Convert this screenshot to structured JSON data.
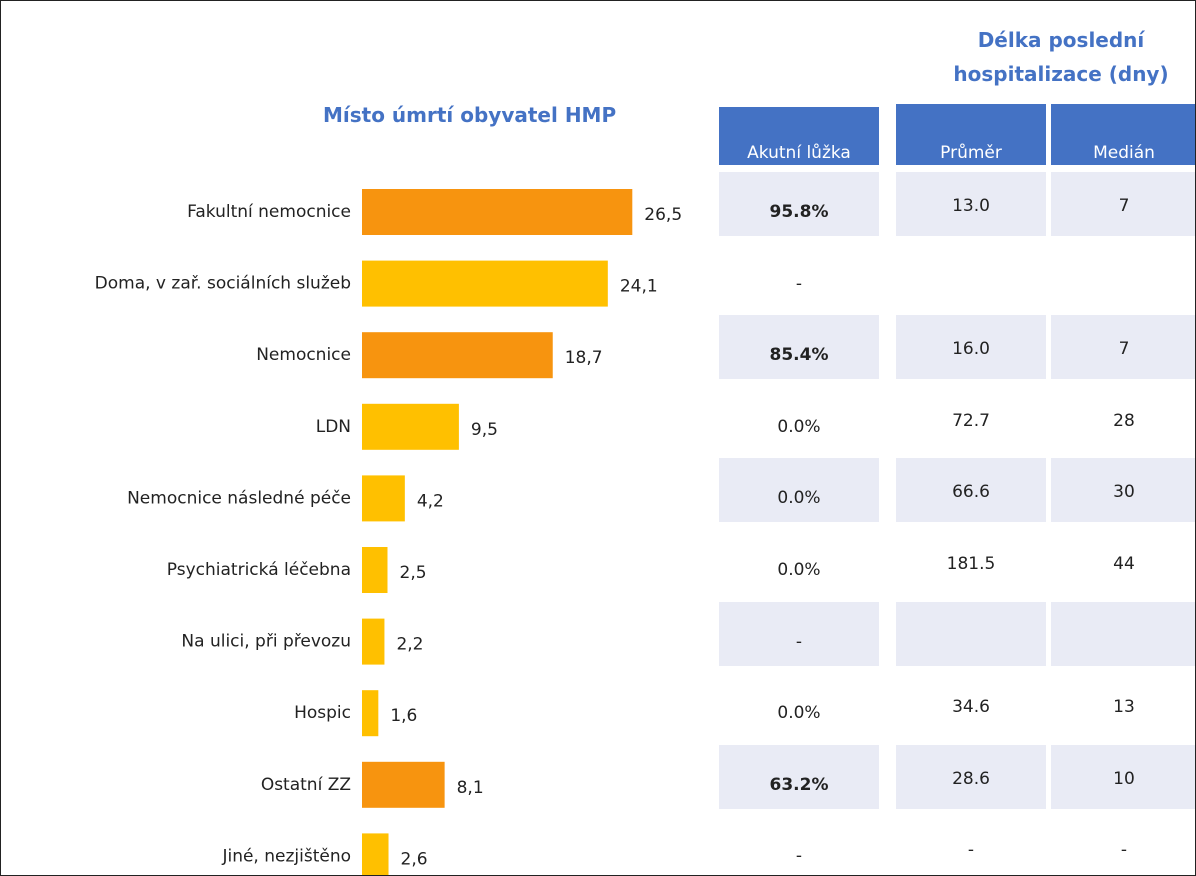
{
  "chart_data": {
    "type": "bar",
    "orientation": "horizontal",
    "title": "Místo úmrtí obyvatel HMP",
    "categories": [
      "Fakultní nemocnice",
      "Doma, v zař. sociálních služeb",
      "Nemocnice",
      "LDN",
      "Nemocnice následné péče",
      "Psychiatrická léčebna",
      "Na ulici, při převozu",
      "Hospic",
      "Ostatní ZZ",
      "Jiné, nezjištěno"
    ],
    "values": [
      26.5,
      24.1,
      18.7,
      9.5,
      4.2,
      2.5,
      2.2,
      1.6,
      8.1,
      2.6
    ],
    "value_labels": [
      "26,5",
      "24,1",
      "18,7",
      "9,5",
      "4,2",
      "2,5",
      "2,2",
      "1,6",
      "8,1",
      "2,6"
    ],
    "colors": [
      "#f7940f",
      "#ffc000",
      "#f7940f",
      "#ffc000",
      "#ffc000",
      "#ffc000",
      "#ffc000",
      "#ffc000",
      "#f7940f",
      "#ffc000"
    ]
  },
  "table": {
    "group_header": "Délka poslední hospitalizace (dny)",
    "columns": [
      "Akutní lůžka",
      "Průměr",
      "Medián"
    ],
    "rows": [
      [
        "95.8%",
        "13.0",
        "7"
      ],
      [
        "-",
        null,
        null
      ],
      [
        "85.4%",
        "16.0",
        "7"
      ],
      [
        "0.0%",
        "72.7",
        "28"
      ],
      [
        "0.0%",
        "66.6",
        "30"
      ],
      [
        "0.0%",
        "181.5",
        "44"
      ],
      [
        "-",
        null,
        null
      ],
      [
        "0.0%",
        "34.6",
        "13"
      ],
      [
        "63.2%",
        "28.6",
        "10"
      ],
      [
        "-",
        "-",
        "-"
      ]
    ],
    "bold_rows": [
      0,
      2,
      8
    ]
  }
}
